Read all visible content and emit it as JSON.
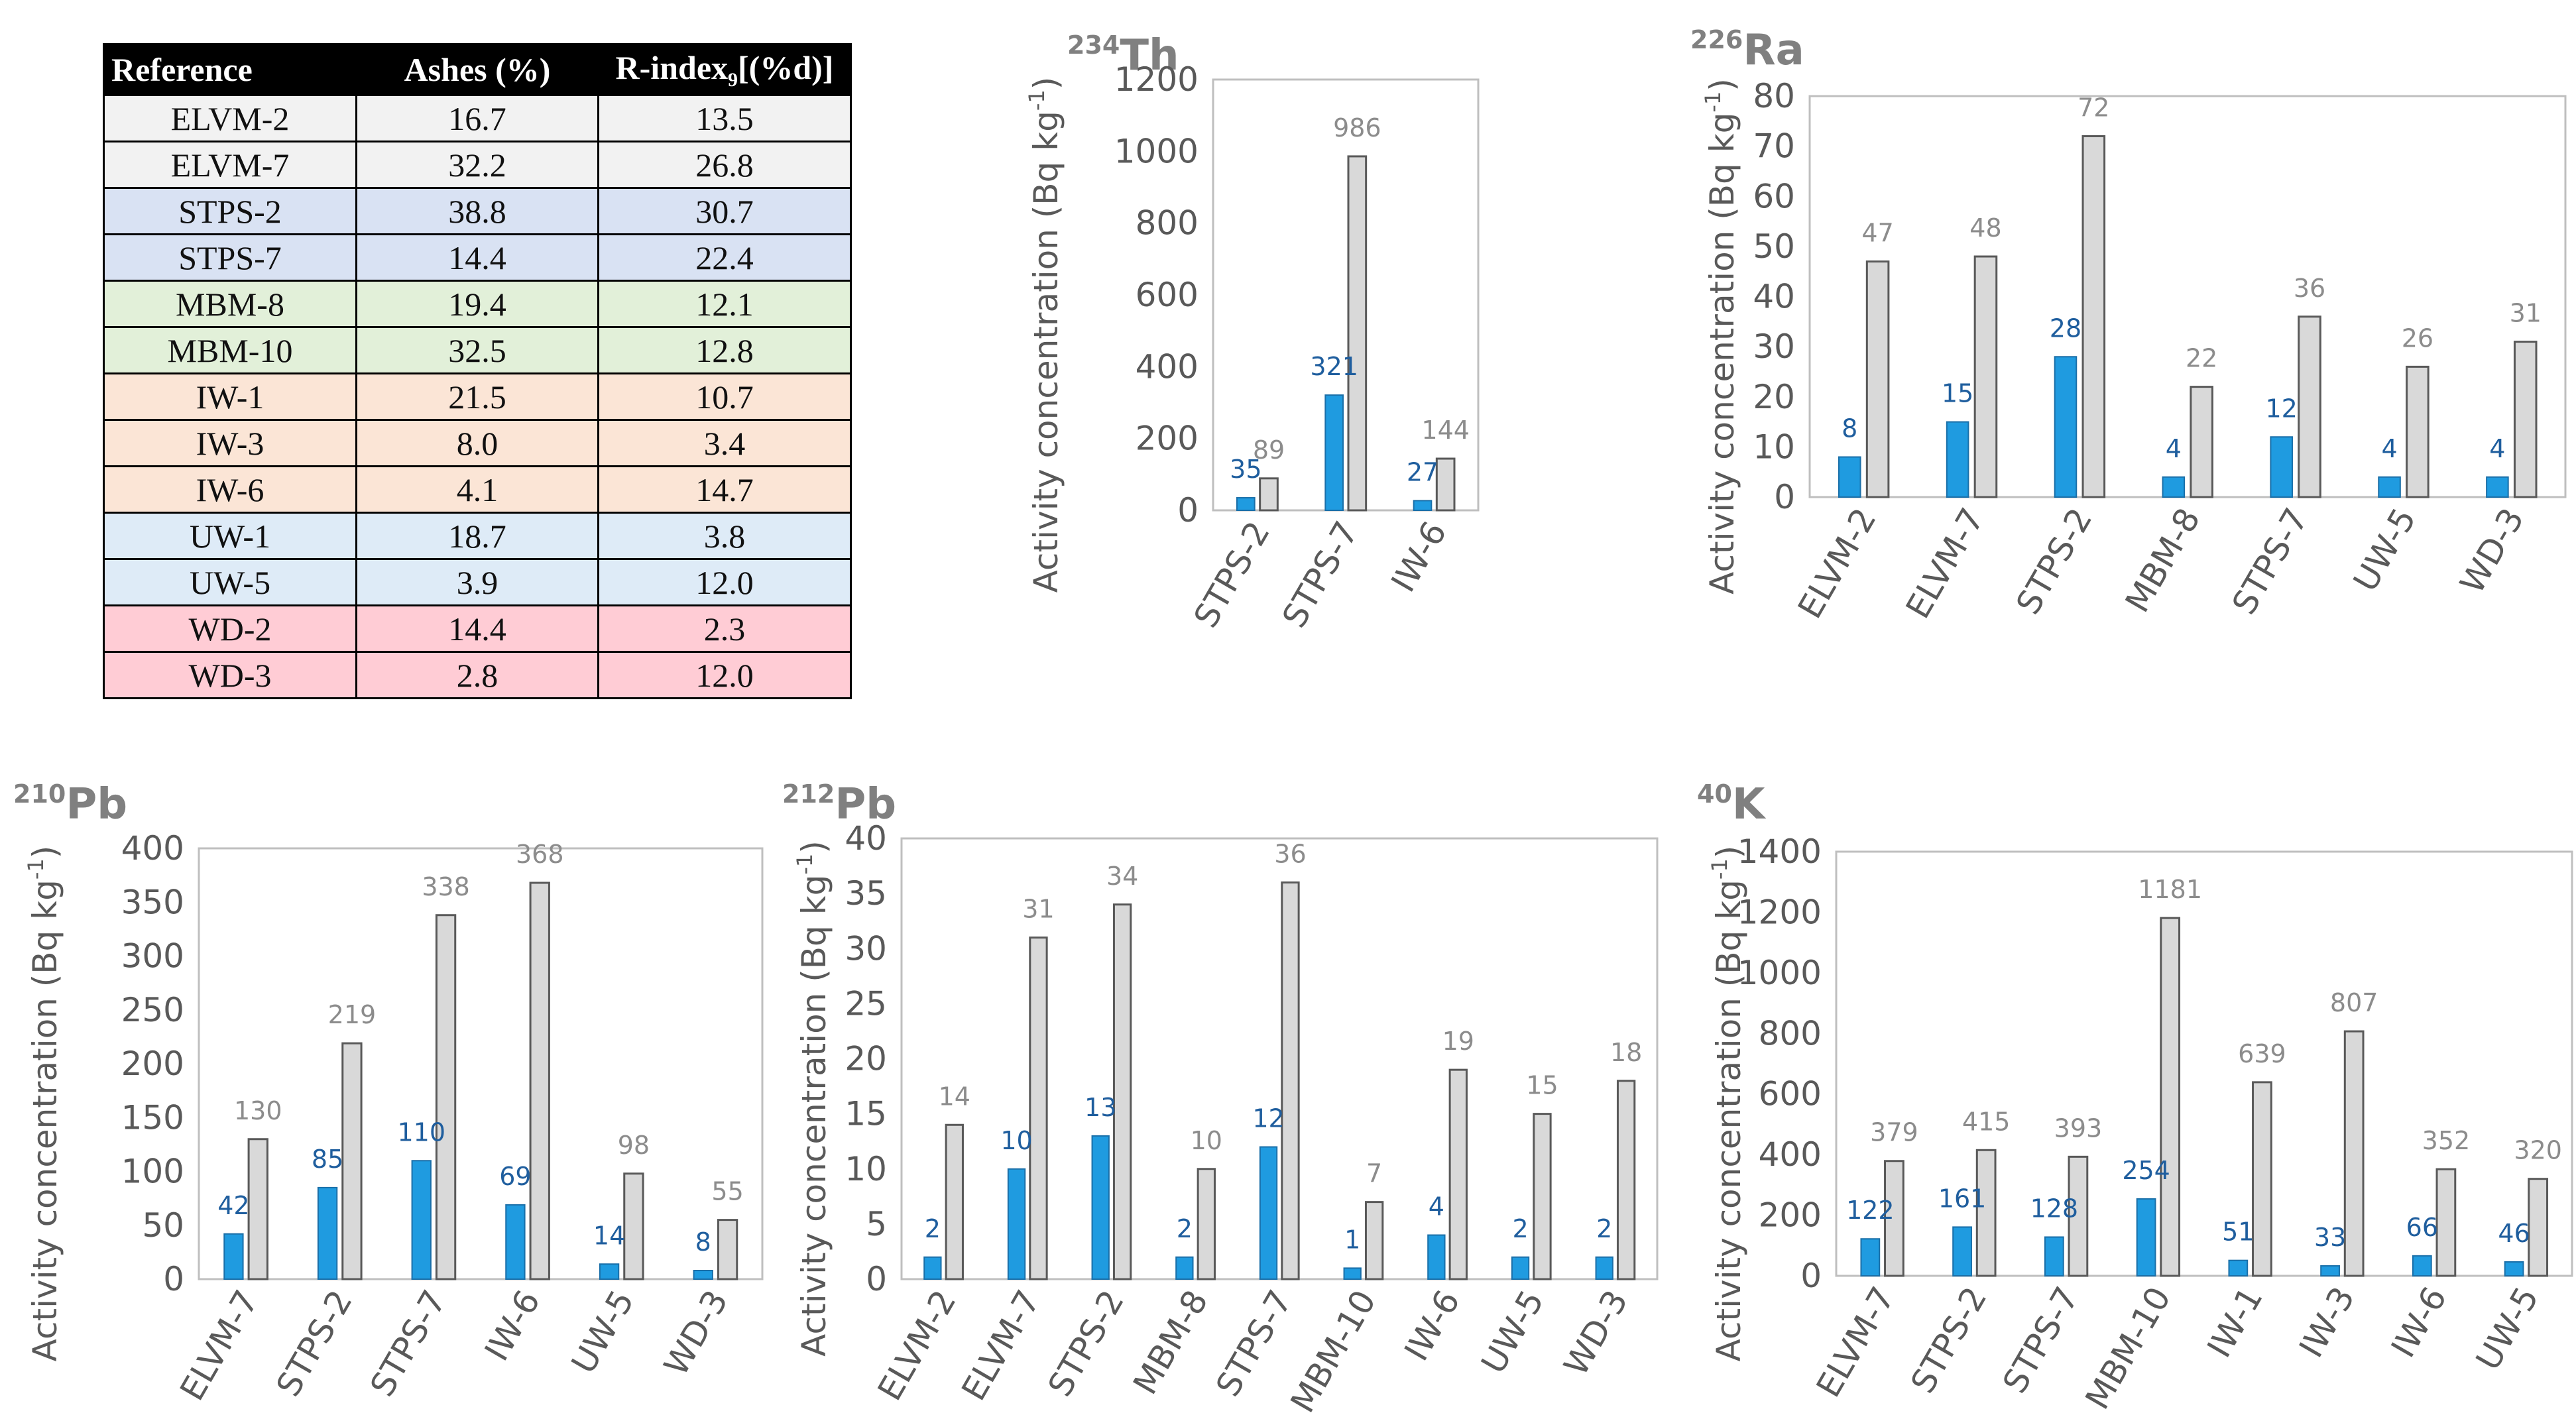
{
  "reference_table": {
    "headers": [
      "Reference",
      "Ashes (%)",
      "R-index",
      "9",
      "[(%d)]"
    ],
    "rows": [
      {
        "ref": "ELVM-2",
        "ashes": "16.7",
        "rindex": "13.5",
        "color": "#f2f2f2"
      },
      {
        "ref": "ELVM-7",
        "ashes": "32.2",
        "rindex": "26.8",
        "color": "#f2f2f2"
      },
      {
        "ref": "STPS-2",
        "ashes": "38.8",
        "rindex": "30.7",
        "color": "#d9e2f3"
      },
      {
        "ref": "STPS-7",
        "ashes": "14.4",
        "rindex": "22.4",
        "color": "#d9e2f3"
      },
      {
        "ref": "MBM-8",
        "ashes": "19.4",
        "rindex": "12.1",
        "color": "#e2f0d9"
      },
      {
        "ref": "MBM-10",
        "ashes": "32.5",
        "rindex": "12.8",
        "color": "#e2f0d9"
      },
      {
        "ref": "IW-1",
        "ashes": "21.5",
        "rindex": "10.7",
        "color": "#fbe5d6"
      },
      {
        "ref": "IW-3",
        "ashes": "8.0",
        "rindex": "3.4",
        "color": "#fbe5d6"
      },
      {
        "ref": "IW-6",
        "ashes": "4.1",
        "rindex": "14.7",
        "color": "#fbe5d6"
      },
      {
        "ref": "UW-1",
        "ashes": "18.7",
        "rindex": "3.8",
        "color": "#deebf7"
      },
      {
        "ref": "UW-5",
        "ashes": "3.9",
        "rindex": "12.0",
        "color": "#deebf7"
      },
      {
        "ref": "WD-2",
        "ashes": "14.4",
        "rindex": "2.3",
        "color": "#ffccd5"
      },
      {
        "ref": "WD-3",
        "ashes": "2.8",
        "rindex": "12.0",
        "color": "#ffccd5"
      }
    ]
  },
  "colors": {
    "series1": "#1f9be0",
    "series2": "#d9d9d9",
    "series2_stroke": "#595959",
    "label1": "#1f5e9e",
    "label2": "#8c8c8c",
    "axis_text": "#595959",
    "title": "#808080"
  },
  "chart_data": [
    {
      "type": "bar",
      "title_sup": "234",
      "title": "Th",
      "ylabel": "Activity concentration (Bq kg",
      "ylabel_sup": "-1",
      "ylabel_end": ")",
      "ylim": [
        0,
        1200
      ],
      "yticks": [
        0,
        200,
        400,
        600,
        800,
        1000,
        1200
      ],
      "categories": [
        "STPS-2",
        "STPS-7",
        "IW-6"
      ],
      "series": [
        {
          "name": "series1",
          "values": [
            35,
            321,
            27
          ]
        },
        {
          "name": "series2",
          "values": [
            89,
            986,
            144
          ]
        }
      ]
    },
    {
      "type": "bar",
      "title_sup": "226",
      "title": "Ra",
      "ylabel": "Activity concentration (Bq kg",
      "ylabel_sup": "-1",
      "ylabel_end": ")",
      "ylim": [
        0,
        80
      ],
      "yticks": [
        0,
        10,
        20,
        30,
        40,
        50,
        60,
        70,
        80
      ],
      "categories": [
        "ELVM-2",
        "ELVM-7",
        "STPS-2",
        "MBM-8",
        "STPS-7",
        "UW-5",
        "WD-3"
      ],
      "series": [
        {
          "name": "series1",
          "values": [
            8,
            15,
            28,
            4,
            12,
            4,
            4
          ]
        },
        {
          "name": "series2",
          "values": [
            47,
            48,
            72,
            22,
            36,
            26,
            31
          ]
        }
      ]
    },
    {
      "type": "bar",
      "title_sup": "210",
      "title": "Pb",
      "ylabel": "Activity concentration (Bq kg",
      "ylabel_sup": "-1",
      "ylabel_end": ")",
      "ylim": [
        0,
        400
      ],
      "yticks": [
        0,
        50,
        100,
        150,
        200,
        250,
        300,
        350,
        400
      ],
      "categories": [
        "ELVM-7",
        "STPS-2",
        "STPS-7",
        "IW-6",
        "UW-5",
        "WD-3"
      ],
      "series": [
        {
          "name": "series1",
          "values": [
            42,
            85,
            110,
            69,
            14,
            8
          ]
        },
        {
          "name": "series2",
          "values": [
            130,
            219,
            338,
            368,
            98,
            55
          ]
        }
      ]
    },
    {
      "type": "bar",
      "title_sup": "212",
      "title": "Pb",
      "ylabel": "Activity concentration (Bq kg",
      "ylabel_sup": "-1",
      "ylabel_end": ")",
      "ylim": [
        0,
        40
      ],
      "yticks": [
        0,
        5,
        10,
        15,
        20,
        25,
        30,
        35,
        40
      ],
      "categories": [
        "ELVM-2",
        "ELVM-7",
        "STPS-2",
        "MBM-8",
        "STPS-7",
        "MBM-10",
        "IW-6",
        "UW-5",
        "WD-3"
      ],
      "series": [
        {
          "name": "series1",
          "values": [
            2,
            10,
            13,
            2,
            12,
            1,
            4,
            2,
            2
          ]
        },
        {
          "name": "series2",
          "values": [
            14,
            31,
            34,
            10,
            36,
            7,
            19,
            15,
            18
          ]
        }
      ]
    },
    {
      "type": "bar",
      "title_sup": "40",
      "title": "K",
      "ylabel": "Activity concentration (Bq kg",
      "ylabel_sup": "-1",
      "ylabel_end": ")",
      "ylim": [
        0,
        1400
      ],
      "yticks": [
        0,
        200,
        400,
        600,
        800,
        1000,
        1200,
        1400
      ],
      "categories": [
        "ELVM-7",
        "STPS-2",
        "STPS-7",
        "MBM-10",
        "IW-1",
        "IW-3",
        "IW-6",
        "UW-5"
      ],
      "series": [
        {
          "name": "series1",
          "values": [
            122,
            161,
            128,
            254,
            51,
            33,
            66,
            46
          ]
        },
        {
          "name": "series2",
          "values": [
            379,
            415,
            393,
            1181,
            639,
            807,
            352,
            320
          ]
        }
      ]
    }
  ]
}
